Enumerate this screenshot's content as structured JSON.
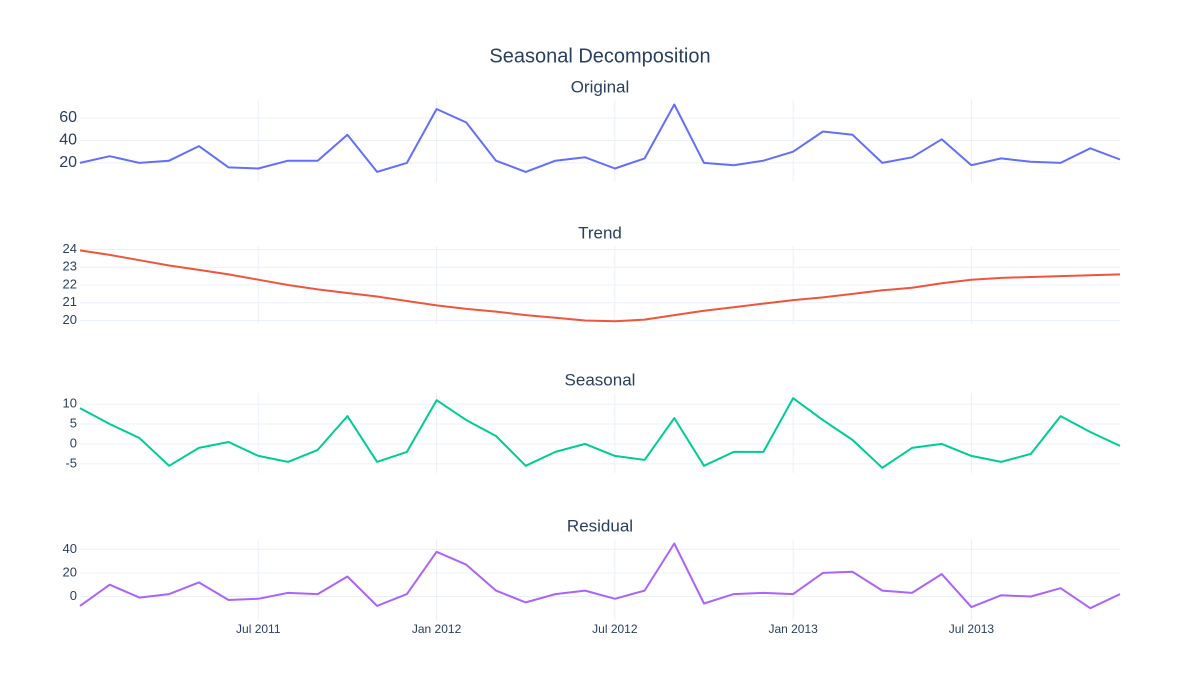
{
  "title": "Seasonal Decomposition",
  "chart_data": [
    {
      "type": "line",
      "title": "Original",
      "color": "#636efa",
      "grid": true,
      "xlim": [
        "2011-01",
        "2013-12"
      ],
      "x": [
        "2011-01",
        "2011-02",
        "2011-03",
        "2011-04",
        "2011-05",
        "2011-06",
        "2011-07",
        "2011-08",
        "2011-09",
        "2011-10",
        "2011-11",
        "2011-12",
        "2012-01",
        "2012-02",
        "2012-03",
        "2012-04",
        "2012-05",
        "2012-06",
        "2012-07",
        "2012-08",
        "2012-09",
        "2012-10",
        "2012-11",
        "2012-12",
        "2013-01",
        "2013-02",
        "2013-03",
        "2013-04",
        "2013-05",
        "2013-06",
        "2013-07",
        "2013-08",
        "2013-09",
        "2013-10",
        "2013-11",
        "2013-12"
      ],
      "values": [
        20,
        26,
        20,
        22,
        35,
        16,
        15,
        22,
        22,
        45,
        12,
        20,
        68,
        56,
        22,
        12,
        22,
        25,
        15,
        24,
        72,
        20,
        18,
        22,
        30,
        48,
        45,
        20,
        25,
        41,
        18,
        24,
        21,
        20,
        33,
        23
      ],
      "ylim": [
        3,
        76
      ],
      "yticks": [
        20,
        40,
        60
      ]
    },
    {
      "type": "line",
      "title": "Trend",
      "color": "#ef553b",
      "grid": true,
      "xlim": [
        "2011-01",
        "2013-12"
      ],
      "x": [
        "2011-01",
        "2011-02",
        "2011-03",
        "2011-04",
        "2011-05",
        "2011-06",
        "2011-07",
        "2011-08",
        "2011-09",
        "2011-10",
        "2011-11",
        "2011-12",
        "2012-01",
        "2012-02",
        "2012-03",
        "2012-04",
        "2012-05",
        "2012-06",
        "2012-07",
        "2012-08",
        "2012-09",
        "2012-10",
        "2012-11",
        "2012-12",
        "2013-01",
        "2013-02",
        "2013-03",
        "2013-04",
        "2013-05",
        "2013-06",
        "2013-07",
        "2013-08",
        "2013-09",
        "2013-10",
        "2013-11",
        "2013-12"
      ],
      "values": [
        23.95,
        23.7,
        23.4,
        23.1,
        22.85,
        22.6,
        22.3,
        22.0,
        21.75,
        21.55,
        21.35,
        21.1,
        20.85,
        20.65,
        20.5,
        20.3,
        20.15,
        20.0,
        19.95,
        20.05,
        20.3,
        20.55,
        20.75,
        20.95,
        21.15,
        21.3,
        21.5,
        21.7,
        21.85,
        22.1,
        22.3,
        22.4,
        22.45,
        22.5,
        22.55,
        22.6
      ],
      "ylim": [
        19.8,
        24.2
      ],
      "yticks": [
        20,
        21,
        22,
        23,
        24
      ]
    },
    {
      "type": "line",
      "title": "Seasonal",
      "color": "#00cc96",
      "grid": true,
      "xlim": [
        "2011-01",
        "2013-12"
      ],
      "x": [
        "2011-01",
        "2011-02",
        "2011-03",
        "2011-04",
        "2011-05",
        "2011-06",
        "2011-07",
        "2011-08",
        "2011-09",
        "2011-10",
        "2011-11",
        "2011-12",
        "2012-01",
        "2012-02",
        "2012-03",
        "2012-04",
        "2012-05",
        "2012-06",
        "2012-07",
        "2012-08",
        "2012-09",
        "2012-10",
        "2012-11",
        "2012-12",
        "2013-01",
        "2013-02",
        "2013-03",
        "2013-04",
        "2013-05",
        "2013-06",
        "2013-07",
        "2013-08",
        "2013-09",
        "2013-10",
        "2013-11",
        "2013-12"
      ],
      "values": [
        9,
        5,
        1.5,
        -5.5,
        -1,
        0.5,
        -3,
        -4.5,
        -1.5,
        7,
        -4.5,
        -2,
        11,
        6,
        2,
        -5.5,
        -2,
        0,
        -3,
        -4,
        6.5,
        -5.5,
        -2,
        -2,
        11.5,
        6,
        1,
        -6,
        -1,
        0,
        -3,
        -4.5,
        -2.5,
        7,
        3,
        -0.5
      ],
      "ylim": [
        -7.3,
        12.8
      ],
      "yticks": [
        -5,
        0,
        5,
        10
      ]
    },
    {
      "type": "line",
      "title": "Residual",
      "color": "#ab63fa",
      "grid": true,
      "xlim": [
        "2011-01",
        "2013-12"
      ],
      "x": [
        "2011-01",
        "2011-02",
        "2011-03",
        "2011-04",
        "2011-05",
        "2011-06",
        "2011-07",
        "2011-08",
        "2011-09",
        "2011-10",
        "2011-11",
        "2011-12",
        "2012-01",
        "2012-02",
        "2012-03",
        "2012-04",
        "2012-05",
        "2012-06",
        "2012-07",
        "2012-08",
        "2012-09",
        "2012-10",
        "2012-11",
        "2012-12",
        "2013-01",
        "2013-02",
        "2013-03",
        "2013-04",
        "2013-05",
        "2013-06",
        "2013-07",
        "2013-08",
        "2013-09",
        "2013-10",
        "2013-11",
        "2013-12"
      ],
      "values": [
        -8,
        10,
        -1,
        2,
        12,
        -3,
        -2,
        3,
        2,
        17,
        -8,
        2,
        38,
        27,
        5,
        -5,
        2,
        5,
        -2,
        5,
        45,
        -6,
        2,
        3,
        2,
        20,
        21,
        5,
        3,
        19,
        -9,
        1,
        0,
        7,
        -10,
        2
      ],
      "ylim": [
        -20,
        48
      ],
      "yticks": [
        0,
        20,
        40
      ],
      "xticks": [
        {
          "value": "2011-07",
          "label": "Jul 2011"
        },
        {
          "value": "2012-01",
          "label": "Jan 2012"
        },
        {
          "value": "2012-07",
          "label": "Jul 2012"
        },
        {
          "value": "2013-01",
          "label": "Jan 2013"
        },
        {
          "value": "2013-07",
          "label": "Jul 2013"
        }
      ]
    }
  ]
}
